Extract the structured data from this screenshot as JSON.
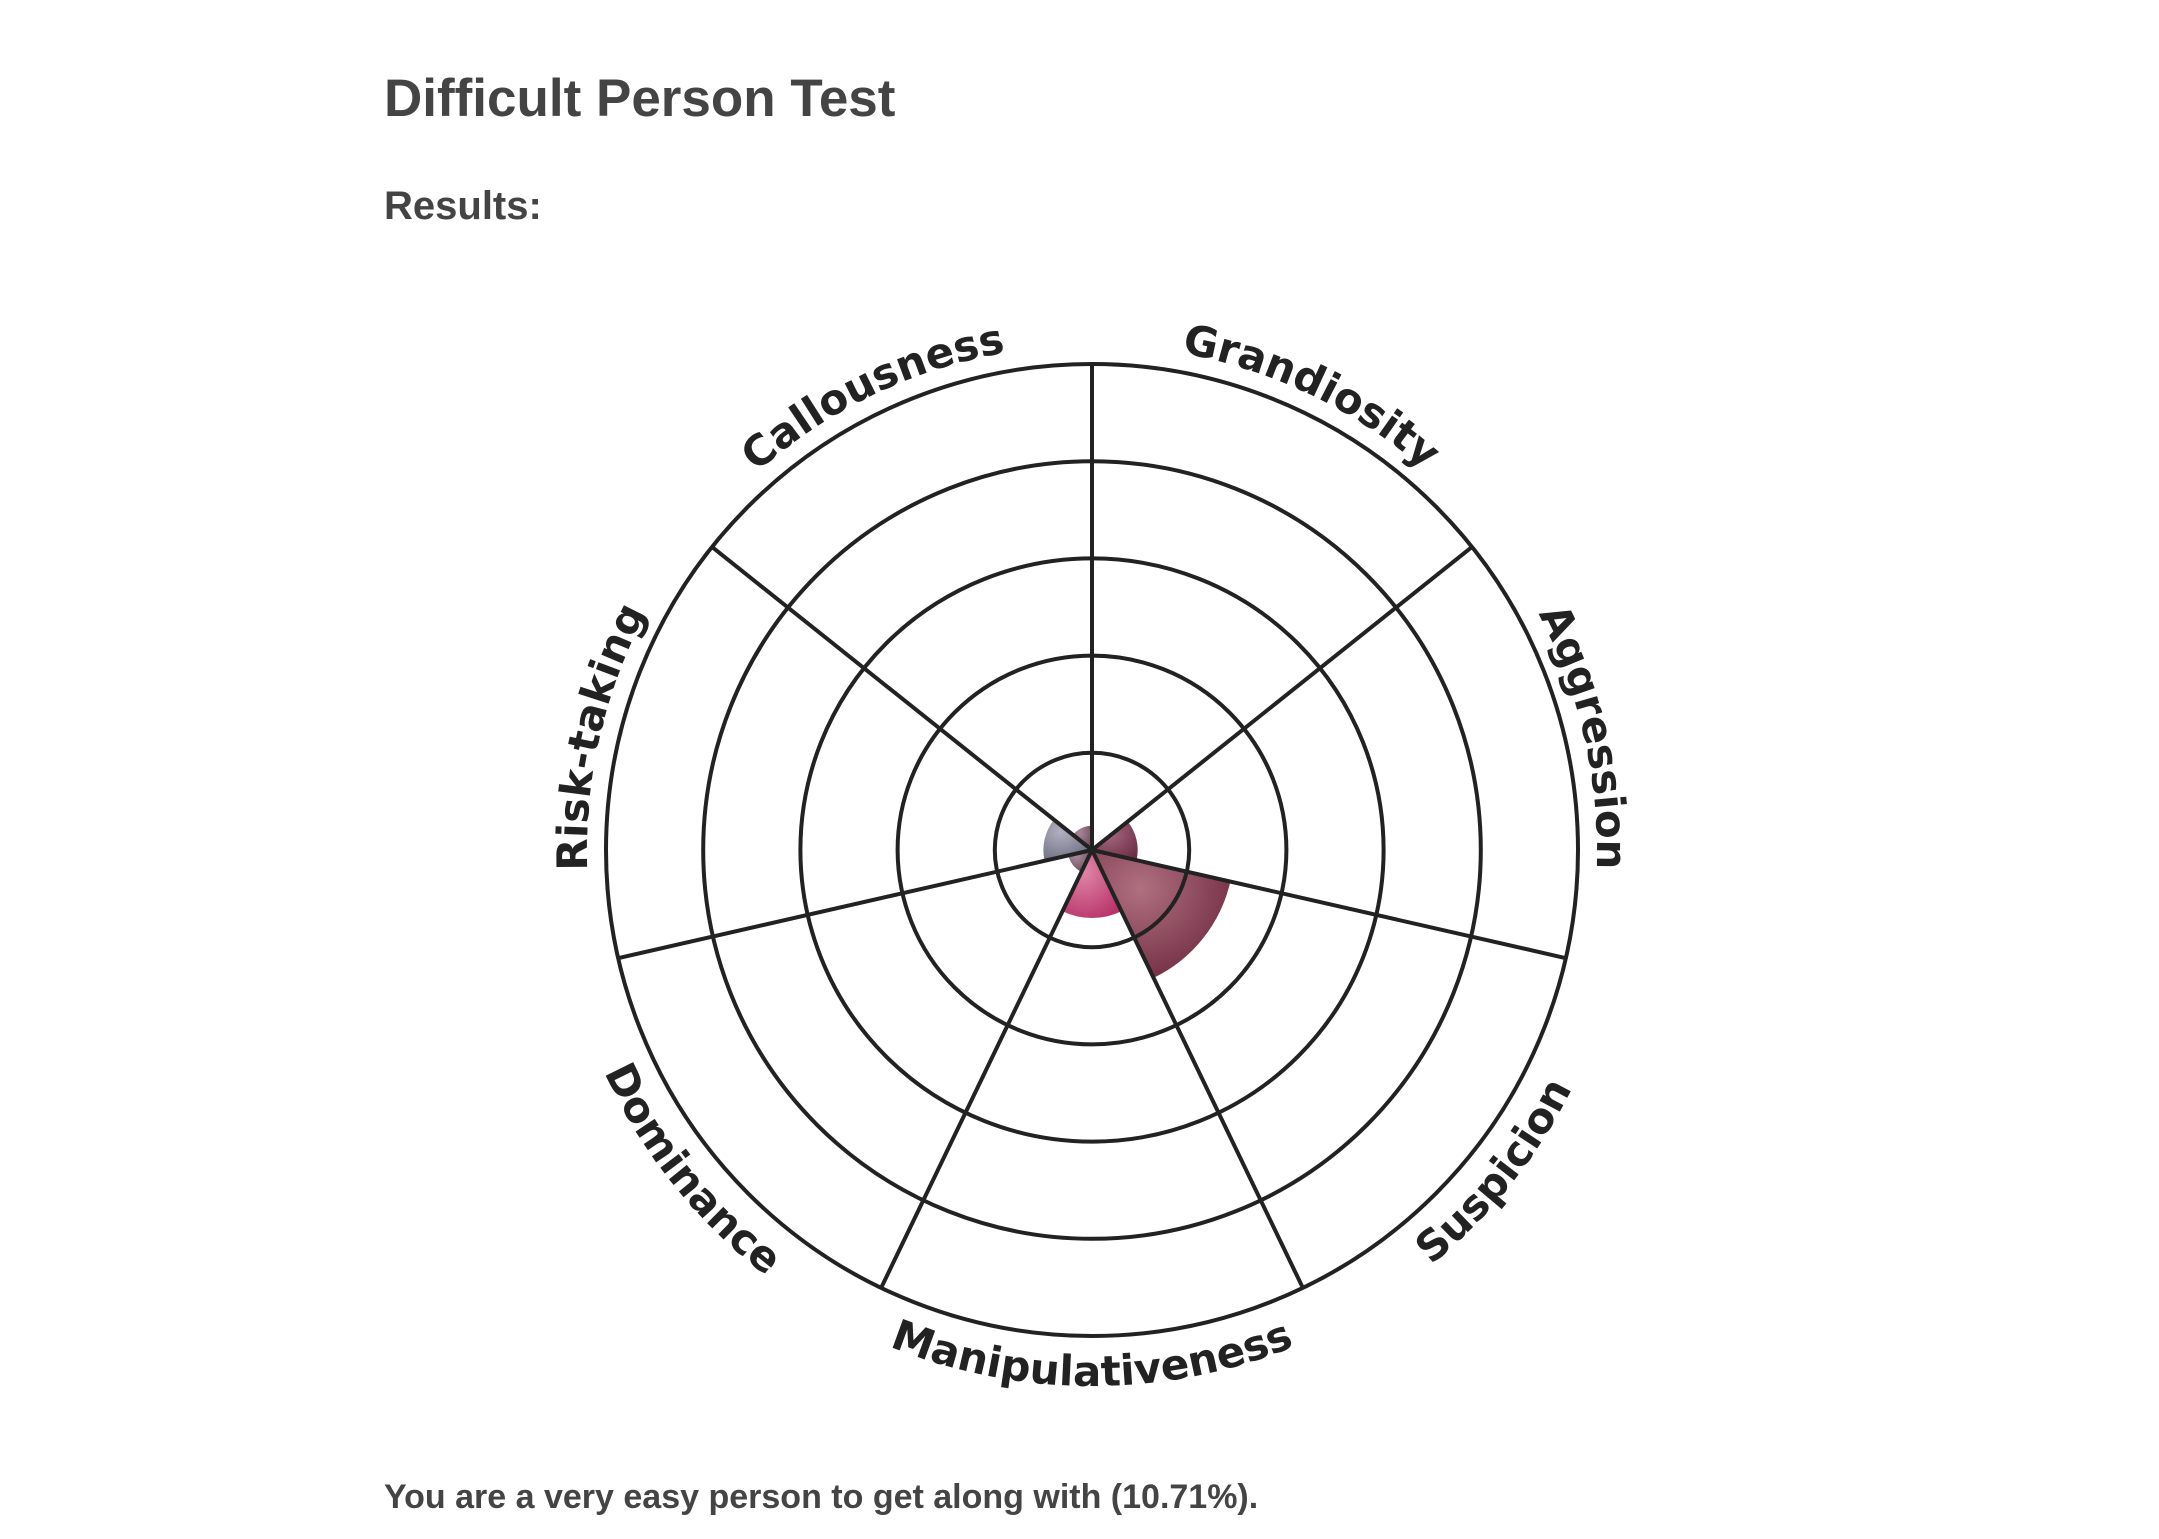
{
  "page": {
    "title": "Difficult Person Test",
    "results_label": "Results:",
    "summary": "You are a very easy person to get along with (10.71%)."
  },
  "chart_data": {
    "type": "polar-area",
    "rings": 5,
    "grid": true,
    "categories": [
      "Grandiosity",
      "Aggression",
      "Suspicion",
      "Manipulativeness",
      "Dominance",
      "Risk-taking",
      "Callousness"
    ],
    "values": [
      0,
      0.47,
      1.46,
      0.7,
      0.25,
      0.5,
      0.25
    ],
    "range": [
      0,
      5
    ],
    "colors": [
      "#7a4a5e",
      "#6e3048",
      "#6e2a40",
      "#b8336a",
      "#6a4a5a",
      "#6c6c80",
      "#6a4a5a"
    ],
    "highlight_colors": [
      "#b88898",
      "#a86a80",
      "#b07080",
      "#e088a8",
      "#a88898",
      "#b0b0c0",
      "#a88898"
    ]
  }
}
